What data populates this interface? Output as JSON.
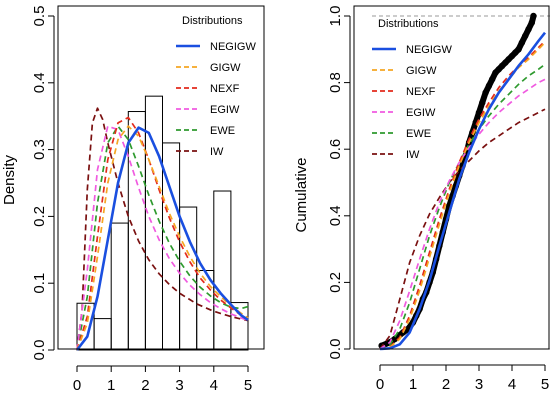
{
  "chart_data": [
    {
      "type": "histogram-density",
      "ylabel": "Density",
      "xlim": [
        0,
        5
      ],
      "ylim": [
        0,
        0.5
      ],
      "x_ticks": [
        "0",
        "1",
        "2",
        "3",
        "4",
        "5"
      ],
      "y_ticks": [
        "0.0",
        "0.1",
        "0.2",
        "0.3",
        "0.4",
        "0.5"
      ],
      "bins": [
        {
          "x0": 0.0,
          "x1": 0.5,
          "density": 0.07
        },
        {
          "x0": 0.5,
          "x1": 1.0,
          "density": 0.047
        },
        {
          "x0": 1.0,
          "x1": 1.5,
          "density": 0.19
        },
        {
          "x0": 1.5,
          "x1": 2.0,
          "density": 0.357
        },
        {
          "x0": 2.0,
          "x1": 2.5,
          "density": 0.38
        },
        {
          "x0": 2.5,
          "x1": 3.0,
          "density": 0.31
        },
        {
          "x0": 3.0,
          "x1": 3.5,
          "density": 0.214
        },
        {
          "x0": 3.5,
          "x1": 4.0,
          "density": 0.119
        },
        {
          "x0": 4.0,
          "x1": 4.5,
          "density": 0.238
        },
        {
          "x0": 4.5,
          "x1": 5.0,
          "density": 0.071
        }
      ],
      "legend": {
        "title": "Distributions",
        "position": "top-right"
      },
      "series": [
        {
          "name": "NEGIGW",
          "color": "#1a4fe0",
          "dash": "solid",
          "width": 2.6,
          "x": [
            0.0,
            0.3,
            0.6,
            0.9,
            1.2,
            1.5,
            1.8,
            2.1,
            2.4,
            2.7,
            3.0,
            3.3,
            3.6,
            3.9,
            4.2,
            4.5,
            4.8,
            5.0
          ],
          "y": [
            0.0,
            0.02,
            0.08,
            0.165,
            0.25,
            0.31,
            0.333,
            0.325,
            0.29,
            0.245,
            0.2,
            0.162,
            0.13,
            0.105,
            0.085,
            0.068,
            0.052,
            0.045
          ]
        },
        {
          "name": "GIGW",
          "color": "#f5a623",
          "dash": "dash",
          "width": 1.7,
          "x": [
            0.0,
            0.3,
            0.6,
            0.9,
            1.2,
            1.5,
            1.8,
            2.1,
            2.4,
            2.7,
            3.0,
            3.3,
            3.6,
            3.9,
            4.2,
            4.5,
            4.8,
            5.0
          ],
          "y": [
            0.0,
            0.04,
            0.14,
            0.25,
            0.315,
            0.335,
            0.32,
            0.285,
            0.245,
            0.205,
            0.17,
            0.14,
            0.115,
            0.095,
            0.08,
            0.066,
            0.055,
            0.048
          ]
        },
        {
          "name": "NEXF",
          "color": "#e32a1c",
          "dash": "dash",
          "width": 1.7,
          "x": [
            0.0,
            0.3,
            0.6,
            0.9,
            1.2,
            1.5,
            1.8,
            2.1,
            2.4,
            2.7,
            3.0,
            3.3,
            3.6,
            3.9,
            4.2,
            4.5,
            4.8,
            5.0
          ],
          "y": [
            0.0,
            0.05,
            0.17,
            0.285,
            0.34,
            0.348,
            0.325,
            0.285,
            0.24,
            0.198,
            0.162,
            0.132,
            0.108,
            0.09,
            0.075,
            0.063,
            0.052,
            0.046
          ]
        },
        {
          "name": "EGIW",
          "color": "#f05ae0",
          "dash": "dash",
          "width": 1.7,
          "x": [
            0.0,
            0.3,
            0.6,
            0.9,
            1.2,
            1.5,
            1.8,
            2.1,
            2.4,
            2.7,
            3.0,
            3.3,
            3.6,
            3.9,
            4.2,
            4.5,
            4.8,
            5.0
          ],
          "y": [
            0.0,
            0.12,
            0.27,
            0.335,
            0.33,
            0.29,
            0.243,
            0.2,
            0.165,
            0.137,
            0.115,
            0.097,
            0.083,
            0.071,
            0.062,
            0.054,
            0.048,
            0.044
          ]
        },
        {
          "name": "EWE",
          "color": "#2e9a2e",
          "dash": "dash",
          "width": 1.7,
          "x": [
            0.0,
            0.3,
            0.6,
            0.9,
            1.2,
            1.5,
            1.8,
            2.1,
            2.4,
            2.7,
            3.0,
            3.3,
            3.6,
            3.9,
            4.2,
            4.5,
            4.8,
            5.0
          ],
          "y": [
            0.0,
            0.08,
            0.22,
            0.31,
            0.335,
            0.315,
            0.275,
            0.232,
            0.193,
            0.16,
            0.133,
            0.111,
            0.094,
            0.081,
            0.071,
            0.064,
            0.062,
            0.065
          ]
        },
        {
          "name": "IW",
          "color": "#7a1010",
          "dash": "dash",
          "width": 1.7,
          "x": [
            0.0,
            0.15,
            0.3,
            0.45,
            0.6,
            0.75,
            0.9,
            1.2,
            1.5,
            1.8,
            2.1,
            2.4,
            2.7,
            3.0,
            3.5,
            4.0,
            4.5,
            5.0
          ],
          "y": [
            0.0,
            0.06,
            0.24,
            0.34,
            0.362,
            0.345,
            0.31,
            0.25,
            0.2,
            0.163,
            0.135,
            0.114,
            0.098,
            0.085,
            0.069,
            0.058,
            0.05,
            0.044
          ]
        }
      ]
    },
    {
      "type": "cdf",
      "ylabel": "Cumulative",
      "xlim": [
        0,
        5
      ],
      "ylim": [
        0,
        1
      ],
      "x_ticks": [
        "0",
        "1",
        "2",
        "3",
        "4",
        "5"
      ],
      "y_ticks": [
        "0.0",
        "0.2",
        "0.4",
        "0.6",
        "0.8",
        "1.0"
      ],
      "reference_lines": [
        0,
        1
      ],
      "legend": {
        "title": "Distributions",
        "position": "top-left"
      },
      "empirical": {
        "x": [
          0.05,
          0.3,
          0.45,
          0.7,
          0.85,
          1.0,
          1.1,
          1.2,
          1.3,
          1.4,
          1.5,
          1.6,
          1.7,
          1.8,
          1.9,
          2.0,
          2.1,
          2.2,
          2.3,
          2.4,
          2.5,
          2.6,
          2.7,
          2.8,
          2.9,
          3.0,
          3.1,
          3.2,
          3.3,
          3.4,
          3.5,
          3.6,
          3.7,
          3.8,
          3.9,
          4.0,
          4.1,
          4.2,
          4.3,
          4.4,
          4.5,
          4.6,
          4.65
        ],
        "y": [
          0.01,
          0.02,
          0.03,
          0.05,
          0.06,
          0.08,
          0.1,
          0.12,
          0.15,
          0.17,
          0.2,
          0.23,
          0.27,
          0.31,
          0.35,
          0.39,
          0.43,
          0.46,
          0.49,
          0.52,
          0.55,
          0.58,
          0.62,
          0.65,
          0.68,
          0.71,
          0.74,
          0.77,
          0.79,
          0.81,
          0.83,
          0.84,
          0.85,
          0.86,
          0.87,
          0.88,
          0.89,
          0.9,
          0.92,
          0.94,
          0.96,
          0.98,
          1.0
        ]
      },
      "series": [
        {
          "name": "NEGIGW",
          "color": "#1a4fe0",
          "dash": "solid",
          "width": 2.6,
          "x": [
            0.0,
            0.3,
            0.6,
            0.9,
            1.2,
            1.5,
            1.8,
            2.1,
            2.4,
            2.7,
            3.0,
            3.3,
            3.6,
            3.9,
            4.2,
            4.5,
            4.8,
            5.0
          ],
          "y": [
            0.0,
            0.002,
            0.014,
            0.05,
            0.12,
            0.205,
            0.31,
            0.41,
            0.51,
            0.59,
            0.66,
            0.72,
            0.77,
            0.81,
            0.85,
            0.885,
            0.925,
            0.95
          ]
        },
        {
          "name": "GIGW",
          "color": "#f5a623",
          "dash": "dash",
          "width": 1.7,
          "x": [
            0.0,
            0.3,
            0.6,
            0.9,
            1.2,
            1.5,
            1.8,
            2.1,
            2.4,
            2.7,
            3.0,
            3.3,
            3.6,
            3.9,
            4.2,
            4.5,
            4.8,
            5.0
          ],
          "y": [
            0.0,
            0.005,
            0.03,
            0.09,
            0.175,
            0.275,
            0.375,
            0.47,
            0.55,
            0.62,
            0.68,
            0.73,
            0.775,
            0.81,
            0.845,
            0.87,
            0.9,
            0.92
          ]
        },
        {
          "name": "NEXF",
          "color": "#e32a1c",
          "dash": "dash",
          "width": 1.7,
          "x": [
            0.0,
            0.3,
            0.6,
            0.9,
            1.2,
            1.5,
            1.8,
            2.1,
            2.4,
            2.7,
            3.0,
            3.3,
            3.6,
            3.9,
            4.2,
            4.5,
            4.8,
            5.0
          ],
          "y": [
            0.0,
            0.006,
            0.035,
            0.1,
            0.19,
            0.29,
            0.39,
            0.48,
            0.56,
            0.63,
            0.69,
            0.74,
            0.785,
            0.82,
            0.85,
            0.875,
            0.905,
            0.925
          ]
        },
        {
          "name": "EGIW",
          "color": "#f05ae0",
          "dash": "dash",
          "width": 1.7,
          "x": [
            0.0,
            0.3,
            0.6,
            0.9,
            1.2,
            1.5,
            1.8,
            2.1,
            2.4,
            2.7,
            3.0,
            3.3,
            3.6,
            3.9,
            4.2,
            4.5,
            4.8,
            5.0
          ],
          "y": [
            0.0,
            0.02,
            0.085,
            0.175,
            0.27,
            0.36,
            0.44,
            0.505,
            0.56,
            0.605,
            0.645,
            0.68,
            0.71,
            0.735,
            0.76,
            0.78,
            0.8,
            0.81
          ]
        },
        {
          "name": "EWE",
          "color": "#2e9a2e",
          "dash": "dash",
          "width": 1.7,
          "x": [
            0.0,
            0.3,
            0.6,
            0.9,
            1.2,
            1.5,
            1.8,
            2.1,
            2.4,
            2.7,
            3.0,
            3.3,
            3.6,
            3.9,
            4.2,
            4.5,
            4.8,
            5.0
          ],
          "y": [
            0.0,
            0.012,
            0.06,
            0.14,
            0.24,
            0.34,
            0.425,
            0.5,
            0.56,
            0.615,
            0.66,
            0.7,
            0.735,
            0.765,
            0.795,
            0.82,
            0.84,
            0.855
          ]
        },
        {
          "name": "IW",
          "color": "#7a1010",
          "dash": "dash",
          "width": 1.7,
          "x": [
            0.0,
            0.3,
            0.6,
            0.9,
            1.2,
            1.5,
            1.8,
            2.1,
            2.4,
            2.7,
            3.0,
            3.3,
            3.6,
            3.9,
            4.2,
            4.5,
            4.8,
            5.0
          ],
          "y": [
            0.0,
            0.04,
            0.15,
            0.26,
            0.34,
            0.405,
            0.455,
            0.5,
            0.535,
            0.565,
            0.595,
            0.62,
            0.64,
            0.66,
            0.68,
            0.695,
            0.71,
            0.72
          ]
        }
      ]
    }
  ]
}
